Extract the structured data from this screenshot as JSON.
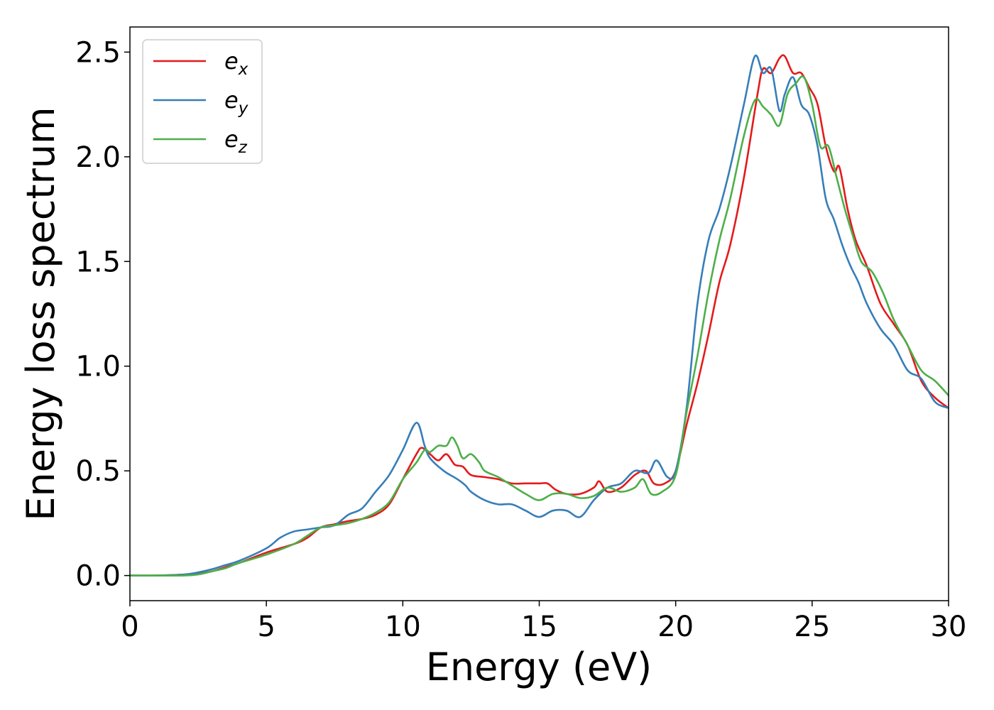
{
  "chart_data": {
    "type": "line",
    "title": "",
    "xlabel": "Energy (eV)",
    "ylabel": "Energy loss spectrum",
    "xlim": [
      0,
      30
    ],
    "ylim": [
      -0.12,
      2.62
    ],
    "xticks": [
      0,
      5,
      10,
      15,
      20,
      25,
      30
    ],
    "xtick_labels": [
      "0",
      "5",
      "10",
      "15",
      "20",
      "25",
      "30"
    ],
    "yticks": [
      0.0,
      0.5,
      1.0,
      1.5,
      2.0,
      2.5
    ],
    "ytick_labels": [
      "0.0",
      "0.5",
      "1.0",
      "1.5",
      "2.0",
      "2.5"
    ],
    "grid": false,
    "legend_position": "top-left",
    "series": [
      {
        "name": "e",
        "subscript": "x",
        "color": "#e41a1c",
        "x": [
          0,
          1,
          2,
          2.5,
          3,
          3.5,
          4,
          5,
          6,
          6.5,
          7,
          7.5,
          8,
          8.5,
          9,
          9.5,
          10,
          10.5,
          10.7,
          11,
          11.3,
          11.6,
          11.9,
          12.2,
          12.5,
          13,
          13.5,
          14,
          14.5,
          15,
          15.3,
          15.6,
          16,
          16.5,
          17,
          17.2,
          17.5,
          18,
          18.5,
          18.9,
          19.2,
          19.6,
          20,
          20.4,
          20.8,
          21.2,
          21.6,
          22,
          22.5,
          23,
          23.2,
          23.5,
          23.8,
          24,
          24.3,
          24.6,
          24.9,
          25.2,
          25.5,
          25.8,
          26,
          26.3,
          26.6,
          27,
          27.5,
          28,
          28.5,
          29,
          29.5,
          30
        ],
        "y": [
          0,
          0,
          0.005,
          0.01,
          0.02,
          0.04,
          0.06,
          0.11,
          0.15,
          0.18,
          0.23,
          0.245,
          0.26,
          0.27,
          0.29,
          0.34,
          0.46,
          0.58,
          0.61,
          0.58,
          0.55,
          0.58,
          0.53,
          0.52,
          0.48,
          0.47,
          0.46,
          0.44,
          0.44,
          0.44,
          0.44,
          0.41,
          0.39,
          0.39,
          0.42,
          0.45,
          0.4,
          0.42,
          0.48,
          0.5,
          0.44,
          0.44,
          0.5,
          0.72,
          0.92,
          1.15,
          1.4,
          1.58,
          1.9,
          2.3,
          2.42,
          2.4,
          2.47,
          2.48,
          2.4,
          2.4,
          2.33,
          2.25,
          2.05,
          1.93,
          1.95,
          1.75,
          1.6,
          1.48,
          1.3,
          1.2,
          1.1,
          0.93,
          0.85,
          0.8
        ]
      },
      {
        "name": "e",
        "subscript": "y",
        "color": "#377eb8",
        "x": [
          0,
          1,
          2,
          2.5,
          3,
          3.5,
          4,
          5,
          5.5,
          6,
          6.5,
          7,
          7.5,
          8,
          8.5,
          9,
          9.5,
          10,
          10.5,
          10.8,
          11,
          11.5,
          12,
          12.3,
          12.5,
          13,
          13.5,
          14,
          14.5,
          15,
          15.5,
          16,
          16.5,
          17,
          17.5,
          18,
          18.5,
          19,
          19.3,
          19.7,
          20,
          20.4,
          20.8,
          21.2,
          21.6,
          22,
          22.5,
          22.9,
          23.2,
          23.5,
          23.8,
          24,
          24.3,
          24.6,
          24.9,
          25.2,
          25.5,
          25.8,
          26.1,
          26.4,
          26.7,
          27,
          27.5,
          28,
          28.5,
          29,
          29.5,
          30
        ],
        "y": [
          0,
          0,
          0.005,
          0.015,
          0.03,
          0.05,
          0.07,
          0.13,
          0.18,
          0.21,
          0.22,
          0.23,
          0.24,
          0.29,
          0.32,
          0.4,
          0.48,
          0.6,
          0.73,
          0.62,
          0.56,
          0.5,
          0.46,
          0.43,
          0.4,
          0.36,
          0.34,
          0.34,
          0.31,
          0.28,
          0.31,
          0.31,
          0.28,
          0.36,
          0.42,
          0.44,
          0.5,
          0.49,
          0.55,
          0.47,
          0.5,
          0.8,
          1.3,
          1.6,
          1.75,
          1.95,
          2.25,
          2.48,
          2.4,
          2.42,
          2.22,
          2.3,
          2.38,
          2.25,
          2.2,
          2.05,
          1.8,
          1.7,
          1.58,
          1.48,
          1.4,
          1.3,
          1.18,
          1.1,
          0.98,
          0.94,
          0.83,
          0.8
        ]
      },
      {
        "name": "e",
        "subscript": "z",
        "color": "#4daf4a",
        "x": [
          0,
          1,
          2,
          2.5,
          3,
          3.5,
          4,
          5,
          6,
          6.5,
          7,
          7.5,
          8,
          8.5,
          9,
          9.5,
          10,
          10.5,
          10.8,
          11,
          11.3,
          11.6,
          11.8,
          12,
          12.2,
          12.5,
          12.8,
          13,
          13.5,
          14,
          14.5,
          15,
          15.5,
          16,
          16.5,
          17,
          17.5,
          18,
          18.5,
          18.8,
          19.1,
          19.5,
          20,
          20.4,
          20.8,
          21.2,
          21.6,
          22,
          22.5,
          22.9,
          23.2,
          23.5,
          23.8,
          24.1,
          24.4,
          24.7,
          25,
          25.3,
          25.6,
          25.9,
          26.2,
          26.5,
          26.8,
          27.2,
          27.6,
          28,
          28.5,
          29,
          29.5,
          30
        ],
        "y": [
          0,
          0,
          0,
          0.005,
          0.02,
          0.035,
          0.06,
          0.1,
          0.15,
          0.19,
          0.23,
          0.24,
          0.25,
          0.27,
          0.3,
          0.35,
          0.46,
          0.54,
          0.6,
          0.59,
          0.62,
          0.62,
          0.66,
          0.62,
          0.56,
          0.58,
          0.54,
          0.5,
          0.47,
          0.43,
          0.39,
          0.36,
          0.39,
          0.39,
          0.37,
          0.38,
          0.42,
          0.4,
          0.42,
          0.46,
          0.39,
          0.4,
          0.48,
          0.78,
          1.05,
          1.35,
          1.6,
          1.8,
          2.1,
          2.27,
          2.24,
          2.2,
          2.15,
          2.3,
          2.35,
          2.38,
          2.25,
          2.05,
          2.05,
          1.9,
          1.75,
          1.62,
          1.5,
          1.45,
          1.35,
          1.22,
          1.1,
          0.98,
          0.93,
          0.86
        ]
      }
    ]
  }
}
